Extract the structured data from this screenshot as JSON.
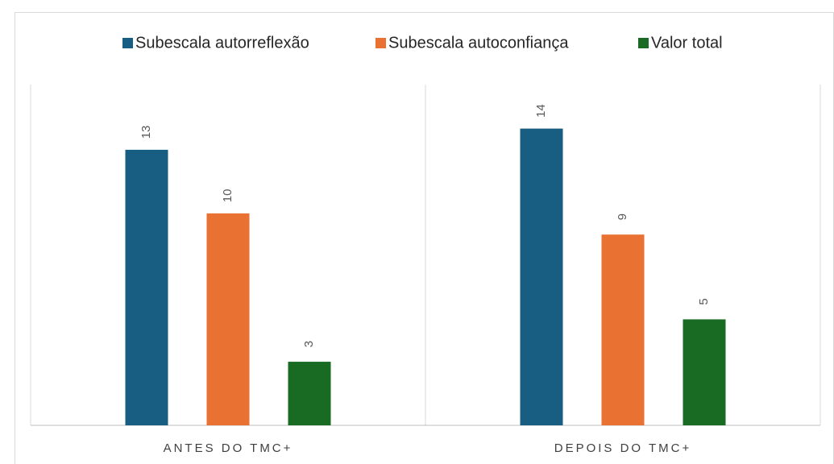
{
  "chart_data": {
    "type": "bar",
    "categories": [
      "ANTES DO TMC+",
      "DEPOIS DO TMC+"
    ],
    "series": [
      {
        "name": "Subescala autorreflexão",
        "color": "#175e82",
        "values": [
          13,
          14
        ]
      },
      {
        "name": "Subescala autoconfiança",
        "color": "#e97132",
        "values": [
          10,
          9
        ]
      },
      {
        "name": "Valor total",
        "color": "#196b24",
        "values": [
          3,
          5
        ]
      }
    ],
    "ylim": [
      0,
      16
    ],
    "legend": "top"
  }
}
